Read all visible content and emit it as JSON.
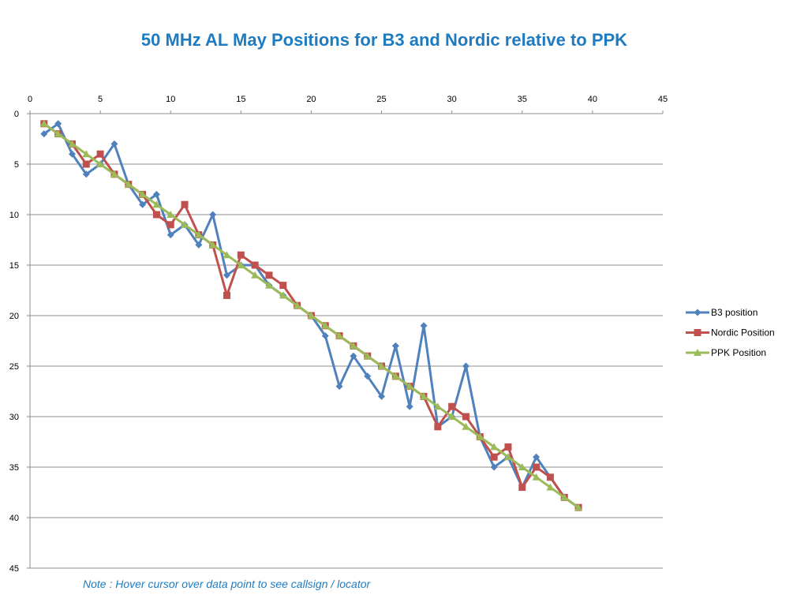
{
  "title": "50 MHz AL May Positions for B3 and Nordic relative to PPK",
  "note": "Note : Hover cursor over data point to see callsign / locator",
  "chart_data": {
    "type": "line",
    "title": "50 MHz AL May Positions for B3 and Nordic relative to PPK",
    "xlim": [
      0,
      45
    ],
    "ylim": [
      0,
      45
    ],
    "y_reversed": true,
    "x_axis_position": "top",
    "x_ticks": [
      0,
      5,
      10,
      15,
      20,
      25,
      30,
      35,
      40,
      45
    ],
    "y_ticks": [
      0,
      5,
      10,
      15,
      20,
      25,
      30,
      35,
      40,
      45
    ],
    "grid": "horizontal",
    "legend": "right",
    "series": [
      {
        "name": "B3 position",
        "color": "#4f81bd",
        "marker": "diamond",
        "x": [
          1,
          2,
          3,
          4,
          5,
          6,
          7,
          8,
          9,
          10,
          11,
          12,
          13,
          14,
          15,
          16,
          17,
          18,
          19,
          20,
          21,
          22,
          23,
          24,
          25,
          26,
          27,
          28,
          29,
          30,
          31,
          32,
          33,
          34,
          35,
          36,
          37,
          38,
          39
        ],
        "y": [
          2,
          1,
          4,
          6,
          5,
          3,
          7,
          9,
          8,
          12,
          11,
          13,
          10,
          16,
          15,
          15,
          17,
          18,
          19,
          20,
          22,
          27,
          24,
          26,
          28,
          23,
          29,
          21,
          31,
          30,
          25,
          32,
          35,
          34,
          37,
          34,
          36,
          38,
          39
        ]
      },
      {
        "name": "Nordic Position",
        "color": "#c0504d",
        "marker": "square",
        "x": [
          1,
          2,
          3,
          4,
          5,
          6,
          7,
          8,
          9,
          10,
          11,
          12,
          13,
          14,
          15,
          16,
          17,
          18,
          19,
          20,
          21,
          22,
          23,
          24,
          25,
          26,
          27,
          28,
          29,
          30,
          31,
          32,
          33,
          34,
          35,
          36,
          37,
          38,
          39
        ],
        "y": [
          1,
          2,
          3,
          5,
          4,
          6,
          7,
          8,
          10,
          11,
          9,
          12,
          13,
          18,
          14,
          15,
          16,
          17,
          19,
          20,
          21,
          22,
          23,
          24,
          25,
          26,
          27,
          28,
          31,
          29,
          30,
          32,
          34,
          33,
          37,
          35,
          36,
          38,
          39
        ]
      },
      {
        "name": "PPK Position",
        "color": "#9bbb59",
        "marker": "triangle",
        "x": [
          1,
          2,
          3,
          4,
          5,
          6,
          7,
          8,
          9,
          10,
          11,
          12,
          13,
          14,
          15,
          16,
          17,
          18,
          19,
          20,
          21,
          22,
          23,
          24,
          25,
          26,
          27,
          28,
          29,
          30,
          31,
          32,
          33,
          34,
          35,
          36,
          37,
          38,
          39
        ],
        "y": [
          1,
          2,
          3,
          4,
          5,
          6,
          7,
          8,
          9,
          10,
          11,
          12,
          13,
          14,
          15,
          16,
          17,
          18,
          19,
          20,
          21,
          22,
          23,
          24,
          25,
          26,
          27,
          28,
          29,
          30,
          31,
          32,
          33,
          34,
          35,
          36,
          37,
          38,
          39
        ]
      }
    ]
  }
}
